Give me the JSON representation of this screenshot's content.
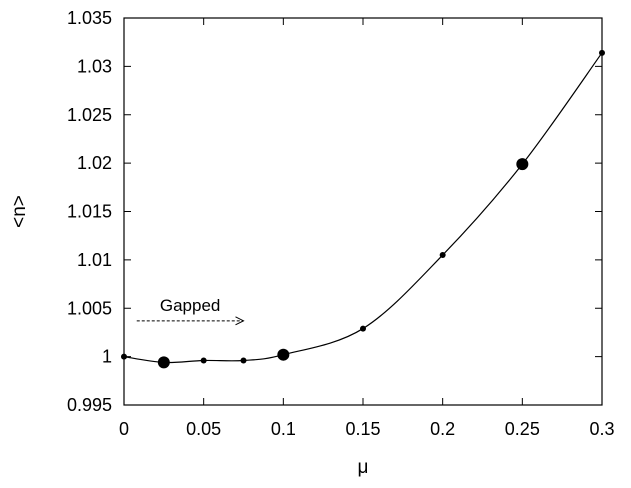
{
  "chart_data": {
    "type": "line",
    "xlabel": "μ",
    "ylabel": "<n>",
    "xlim": [
      0,
      0.3
    ],
    "ylim": [
      0.995,
      1.035
    ],
    "x_ticks": [
      0,
      0.05,
      0.1,
      0.15,
      0.2,
      0.25,
      0.3
    ],
    "x_tick_labels": [
      "0",
      "0.05",
      "0.1",
      "0.15",
      "0.2",
      "0.25",
      "0.3"
    ],
    "y_ticks": [
      0.995,
      1,
      1.005,
      1.01,
      1.015,
      1.02,
      1.025,
      1.03,
      1.035
    ],
    "y_tick_labels": [
      "0.995",
      "1",
      "1.005",
      "1.01",
      "1.015",
      "1.02",
      "1.025",
      "1.03",
      "1.035"
    ],
    "grid": false,
    "series": [
      {
        "points": [
          {
            "x": 0,
            "y": 1.0,
            "marker": "small"
          },
          {
            "x": 0.025,
            "y": 0.9994,
            "marker": "large"
          },
          {
            "x": 0.05,
            "y": 0.9996,
            "marker": "small"
          },
          {
            "x": 0.075,
            "y": 0.9996,
            "marker": "small"
          },
          {
            "x": 0.1,
            "y": 1.0002,
            "marker": "large"
          },
          {
            "x": 0.15,
            "y": 1.0029,
            "marker": "small"
          },
          {
            "x": 0.2,
            "y": 1.0105,
            "marker": "small"
          },
          {
            "x": 0.25,
            "y": 1.0199,
            "marker": "large"
          },
          {
            "x": 0.3,
            "y": 1.0314,
            "marker": "small"
          }
        ],
        "color": "#000000"
      }
    ],
    "annotations": [
      {
        "text": "Gapped",
        "arrow_from": [
          0.008,
          1.0037
        ],
        "arrow_to": [
          0.075,
          1.0037
        ]
      }
    ]
  }
}
